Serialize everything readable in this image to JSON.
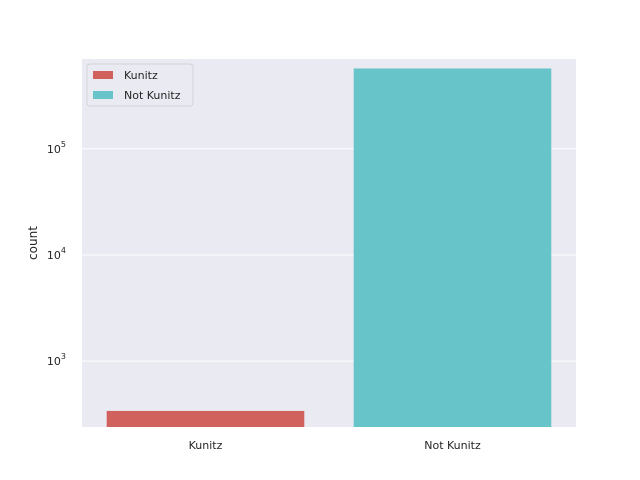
{
  "chart_data": {
    "type": "bar",
    "title": "",
    "xlabel": "",
    "ylabel": "count",
    "y_scale": "log",
    "ylim": [
      240,
      700000
    ],
    "grid": true,
    "legend_position": "upper-left",
    "categories": [
      "Kunitz",
      "Not Kunitz"
    ],
    "values": [
      340,
      570000
    ],
    "colors": [
      "#d1615d",
      "#67c5ca"
    ],
    "y_ticks": [
      {
        "base": "10",
        "exp": "3",
        "value": 1000
      },
      {
        "base": "10",
        "exp": "4",
        "value": 10000
      },
      {
        "base": "10",
        "exp": "5",
        "value": 100000
      }
    ],
    "legend": [
      {
        "label": "Kunitz",
        "color": "#d1615d"
      },
      {
        "label": "Not Kunitz",
        "color": "#67c5ca"
      }
    ]
  }
}
